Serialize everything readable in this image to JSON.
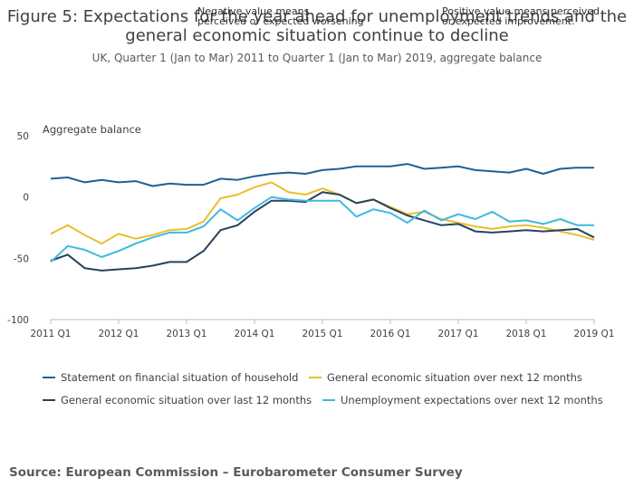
{
  "chart_data": {
    "type": "line",
    "title": "Figure 5: Expectations for the year ahead for unemployment trends and the general economic situation continue to decline",
    "subtitle": "UK, Quarter 1 (Jan to Mar) 2011 to Quarter 1 (Jan to Mar) 2019, aggregate balance",
    "ylabel": "Aggregate balance",
    "ylim": [
      -100,
      50
    ],
    "yticks": [
      50,
      0,
      -50,
      -100
    ],
    "xticks": [
      "2011 Q1",
      "2012 Q1",
      "2013 Q1",
      "2014 Q1",
      "2015 Q1",
      "2016 Q1",
      "2017 Q1",
      "2018 Q1",
      "2019 Q1"
    ],
    "annotations": {
      "negative": "Negative value means\nperceived or expected worsening",
      "positive": "Positive value means perceived\nor expected improvement."
    },
    "legend_position": "bottom",
    "grid": false,
    "series": [
      {
        "name": "Statement on financial situation of household",
        "color": "#206095",
        "values": [
          15,
          16,
          12,
          14,
          12,
          13,
          9,
          11,
          10,
          10,
          15,
          14,
          17,
          19,
          20,
          19,
          22,
          23,
          25,
          25,
          25,
          27,
          23,
          24,
          25,
          22,
          21,
          20,
          23,
          19,
          23,
          24,
          24
        ]
      },
      {
        "name": "General economic situation over next 12 months",
        "color": "#e8c02b",
        "values": [
          -30,
          -23,
          -31,
          -38,
          -30,
          -34,
          -31,
          -27,
          -26,
          -20,
          -1,
          2,
          8,
          12,
          4,
          2,
          7,
          2,
          -5,
          -2,
          -8,
          -14,
          -12,
          -18,
          -21,
          -24,
          -26,
          -24,
          -23,
          -25,
          -28,
          -31,
          -35
        ]
      },
      {
        "name": "General economic situation over last 12 months",
        "color": "#27425e",
        "values": [
          -52,
          -47,
          -58,
          -60,
          -59,
          -58,
          -56,
          -53,
          -53,
          -44,
          -27,
          -23,
          -12,
          -3,
          -3,
          -4,
          4,
          2,
          -5,
          -2,
          -9,
          -15,
          -19,
          -23,
          -22,
          -28,
          -29,
          -28,
          -27,
          -28,
          -27,
          -26,
          -33
        ]
      },
      {
        "name": "Unemployment expectations over next 12 months",
        "color": "#3fb9e0",
        "values": [
          -53,
          -40,
          -43,
          -49,
          -44,
          -38,
          -33,
          -29,
          -29,
          -24,
          -10,
          -19,
          -9,
          0,
          -2,
          -3,
          -3,
          -3,
          -16,
          -10,
          -13,
          -21,
          -11,
          -19,
          -14,
          -18,
          -12,
          -20,
          -19,
          -22,
          -18,
          -23,
          -23
        ]
      }
    ]
  },
  "source": "Source: European Commission – Eurobarometer Consumer Survey"
}
